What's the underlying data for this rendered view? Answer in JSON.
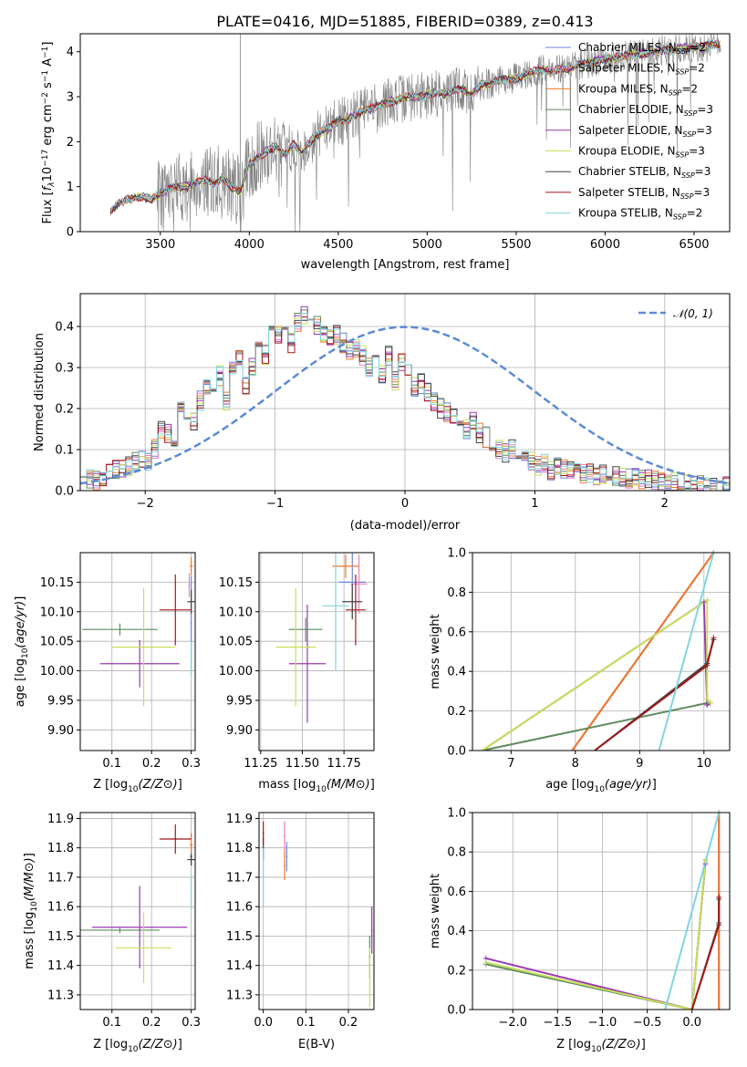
{
  "title": "PLATE=0416, MJD=51885, FIBERID=0389, z=0.413",
  "colors": {
    "data_spectrum": "#808080",
    "gaussian": "#5b8bd5",
    "grid": "#b0b0b0"
  },
  "models": [
    {
      "name": "Chabrier MILES",
      "nssp": "2",
      "color": "#6e84d8"
    },
    {
      "name": "Salpeter MILES",
      "nssp": "2",
      "color": "#e87fbf"
    },
    {
      "name": "Kroupa MILES",
      "nssp": "2",
      "color": "#ee7a2a"
    },
    {
      "name": "Chabrier ELODIE",
      "nssp": "3",
      "color": "#5e8c5e"
    },
    {
      "name": "Salpeter ELODIE",
      "nssp": "3",
      "color": "#9b37b4"
    },
    {
      "name": "Kroupa ELODIE",
      "nssp": "3",
      "color": "#c8e05a"
    },
    {
      "name": "Chabrier STELIB",
      "nssp": "3",
      "color": "#444444"
    },
    {
      "name": "Salpeter STELIB",
      "nssp": "3",
      "color": "#a01818"
    },
    {
      "name": "Kroupa STELIB",
      "nssp": "2",
      "color": "#7fd6e0"
    }
  ],
  "chart_data": [
    {
      "id": "spectrum",
      "type": "line",
      "title": "PLATE=0416, MJD=51885, FIBERID=0389, z=0.413",
      "xlabel": "wavelength [Angstrom, rest frame]",
      "ylabel": "Flux [f_λ 10^-17 erg cm^-2 s^-1 A^-1]",
      "xlim": [
        3050,
        6700
      ],
      "ylim": [
        0,
        4.4
      ],
      "xticks": [
        3500,
        4000,
        4500,
        5000,
        5500,
        6000,
        6500
      ],
      "yticks": [
        0,
        1,
        2,
        3,
        4
      ],
      "grid": false,
      "legend_position": "upper-right",
      "model_continuum": {
        "x": [
          3220,
          3260,
          3300,
          3350,
          3400,
          3450,
          3500,
          3550,
          3600,
          3650,
          3700,
          3750,
          3800,
          3850,
          3900,
          3950,
          4000,
          4050,
          4100,
          4150,
          4200,
          4250,
          4300,
          4350,
          4400,
          4450,
          4500,
          4550,
          4600,
          4650,
          4700,
          4750,
          4800,
          4850,
          4900,
          4950,
          5000,
          5050,
          5100,
          5150,
          5200,
          5250,
          5300,
          5350,
          5400,
          5450,
          5500,
          5550,
          5600,
          5650,
          5700,
          5750,
          5800,
          5850,
          5900,
          5950,
          6000,
          6050,
          6100,
          6150,
          6200,
          6250,
          6300,
          6350,
          6400,
          6450,
          6500,
          6550,
          6600,
          6650
        ],
        "y": [
          0.45,
          0.6,
          0.68,
          0.75,
          0.78,
          0.72,
          0.85,
          0.95,
          1.0,
          1.0,
          1.1,
          1.15,
          1.05,
          1.2,
          1.0,
          0.9,
          1.5,
          1.65,
          1.8,
          1.9,
          1.7,
          1.95,
          1.75,
          2.05,
          2.2,
          2.3,
          2.45,
          2.5,
          2.6,
          2.7,
          2.75,
          2.85,
          2.9,
          2.95,
          3.0,
          3.0,
          3.05,
          3.1,
          3.05,
          3.15,
          3.15,
          3.05,
          3.25,
          3.3,
          3.35,
          3.4,
          3.4,
          3.5,
          3.55,
          3.6,
          3.55,
          3.65,
          3.6,
          3.7,
          3.75,
          3.8,
          3.85,
          3.85,
          3.9,
          3.95,
          3.95,
          4.0,
          4.0,
          4.05,
          4.05,
          4.1,
          4.1,
          4.1,
          4.15,
          4.15
        ]
      }
    },
    {
      "id": "residuals",
      "type": "bar",
      "xlabel": "(data-model)/error",
      "ylabel": "Normed distribution",
      "xlim": [
        -2.5,
        2.5
      ],
      "ylim": [
        0,
        0.48
      ],
      "xticks": [
        -2,
        -1,
        0,
        1,
        2
      ],
      "yticks": [
        0.0,
        0.1,
        0.2,
        0.3,
        0.4
      ],
      "grid": true,
      "legend": "𝒩(0, 1)",
      "legend_position": "top-right",
      "bin_width": 0.1,
      "base_values": [
        0.04,
        0.03,
        0.025,
        0.03,
        0.04,
        0.05,
        0.055,
        0.06,
        0.07,
        0.08,
        0.07,
        0.1,
        0.15,
        0.14,
        0.12,
        0.2,
        0.17,
        0.17,
        0.22,
        0.25,
        0.23,
        0.28,
        0.22,
        0.3,
        0.32,
        0.26,
        0.3,
        0.35,
        0.33,
        0.4,
        0.38,
        0.39,
        0.36,
        0.41,
        0.43,
        0.42,
        0.4,
        0.38,
        0.37,
        0.38,
        0.36,
        0.34,
        0.35,
        0.33,
        0.3,
        0.31,
        0.28,
        0.33,
        0.27,
        0.31,
        0.29,
        0.25,
        0.26,
        0.24,
        0.22,
        0.2,
        0.19,
        0.18,
        0.16,
        0.15,
        0.17,
        0.14,
        0.13,
        0.12,
        0.1,
        0.09,
        0.1,
        0.08,
        0.085,
        0.07,
        0.06,
        0.065,
        0.05,
        0.06,
        0.055,
        0.05,
        0.045,
        0.04,
        0.04,
        0.035,
        0.04,
        0.04,
        0.035,
        0.03,
        0.03,
        0.03,
        0.025,
        0.03,
        0.025,
        0.02,
        0.02,
        0.02,
        0.02,
        0.015,
        0.015,
        0.015,
        0.01,
        0.01,
        0.01,
        0.01
      ],
      "gaussian_curve": {
        "mean": 0,
        "sigma": 1
      }
    },
    {
      "id": "age-vs-Z",
      "type": "scatter",
      "xlabel": "Z [log10(Z/Z⊙)]",
      "ylabel": "age  [log10(age/yr)]",
      "xlim": [
        0.02,
        0.31
      ],
      "ylim": [
        9.865,
        10.2
      ],
      "xticks": [
        0.1,
        0.2,
        0.3
      ],
      "yticks": [
        9.9,
        9.95,
        10.0,
        10.05,
        10.1,
        10.15
      ],
      "grid": true,
      "points": [
        {
          "x": 0.3,
          "y": 10.08,
          "xerr": 0.002,
          "yerr": 0.08
        },
        {
          "x": 0.295,
          "y": 10.145,
          "xerr": 0.002,
          "yerr": 0.02
        },
        {
          "x": 0.3,
          "y": 10.177,
          "xerr": 0.004,
          "yerr": 0.015
        },
        {
          "x": 0.12,
          "y": 10.07,
          "xerr": 0.095,
          "yerr": 0.01
        },
        {
          "x": 0.17,
          "y": 10.012,
          "xerr": 0.1,
          "yerr": 0.04
        },
        {
          "x": 0.18,
          "y": 10.04,
          "xerr": 0.08,
          "yerr": 0.1
        },
        {
          "x": 0.3,
          "y": 10.117,
          "xerr": 0.01,
          "yerr": 0.02
        },
        {
          "x": 0.26,
          "y": 10.103,
          "xerr": 0.04,
          "yerr": 0.06
        },
        {
          "x": 0.3,
          "y": 10.02,
          "xerr": 0.002,
          "yerr": 0.03
        }
      ]
    },
    {
      "id": "age-vs-mass",
      "type": "scatter",
      "xlabel": "mass [log10(M/M⊙)]",
      "ylabel": "",
      "xlim": [
        11.24,
        11.93
      ],
      "ylim": [
        9.865,
        10.2
      ],
      "xticks": [
        11.25,
        11.5,
        11.75
      ],
      "yticks": [
        9.9,
        9.95,
        10.0,
        10.05,
        10.1,
        10.15
      ],
      "grid": true,
      "points": [
        {
          "x": 11.8,
          "y": 10.15,
          "xerr": 0.08,
          "yerr": 0.06
        },
        {
          "x": 11.84,
          "y": 10.147,
          "xerr": 0.05,
          "yerr": 0.05
        },
        {
          "x": 11.76,
          "y": 10.177,
          "xerr": 0.08,
          "yerr": 0.02
        },
        {
          "x": 11.52,
          "y": 10.07,
          "xerr": 0.1,
          "yerr": 0.02
        },
        {
          "x": 11.53,
          "y": 10.012,
          "xerr": 0.11,
          "yerr": 0.1
        },
        {
          "x": 11.46,
          "y": 10.04,
          "xerr": 0.12,
          "yerr": 0.1
        },
        {
          "x": 11.8,
          "y": 10.117,
          "xerr": 0.06,
          "yerr": 0.03
        },
        {
          "x": 11.82,
          "y": 10.103,
          "xerr": 0.06,
          "yerr": 0.06
        },
        {
          "x": 11.7,
          "y": 10.11,
          "xerr": 0.08,
          "yerr": 0.11
        }
      ]
    },
    {
      "id": "massweight-vs-age",
      "type": "line",
      "xlabel": "age  [log10(age/yr)]",
      "ylabel": "mass weight",
      "xlim": [
        6.4,
        10.4
      ],
      "ylim": [
        0,
        1.0
      ],
      "xticks": [
        7,
        8,
        9,
        10
      ],
      "yticks": [
        0.0,
        0.2,
        0.4,
        0.6,
        0.8,
        1.0
      ],
      "grid": true,
      "series": [
        {
          "x": [
            7.95,
            10.15
          ],
          "y": [
            0.0,
            1.0
          ]
        },
        {
          "x": [
            7.95,
            10.15
          ],
          "y": [
            0.0,
            1.0
          ]
        },
        {
          "x": [
            7.95,
            10.15
          ],
          "y": [
            0.0,
            1.0
          ]
        },
        {
          "x": [
            6.55,
            10.05,
            10.05
          ],
          "y": [
            0.0,
            0.24,
            0.24
          ]
        },
        {
          "x": [
            6.55,
            10.0,
            10.05,
            10.1
          ],
          "y": [
            0.0,
            0.75,
            0.23,
            0.24
          ]
        },
        {
          "x": [
            6.55,
            10.05,
            10.05,
            10.1
          ],
          "y": [
            0.0,
            0.76,
            0.26,
            0.24
          ]
        },
        {
          "x": [
            8.3,
            10.05,
            10.15
          ],
          "y": [
            0.0,
            0.44,
            0.56
          ]
        },
        {
          "x": [
            8.3,
            10.05,
            10.15
          ],
          "y": [
            0.0,
            0.43,
            0.57
          ]
        },
        {
          "x": [
            9.3,
            10.15
          ],
          "y": [
            0.0,
            1.0
          ]
        }
      ]
    },
    {
      "id": "mass-vs-Z",
      "type": "scatter",
      "xlabel": "Z [log10(Z/Z⊙)]",
      "ylabel": "mass [log10(M/M⊙)]",
      "xlim": [
        0.02,
        0.31
      ],
      "ylim": [
        11.25,
        11.92
      ],
      "xticks": [
        0.1,
        0.2,
        0.3
      ],
      "yticks": [
        11.3,
        11.4,
        11.5,
        11.6,
        11.7,
        11.8,
        11.9
      ],
      "grid": true,
      "points": [
        {
          "x": 0.3,
          "y": 11.77,
          "xerr": 0.003,
          "yerr": 0.03
        },
        {
          "x": 0.3,
          "y": 11.84,
          "xerr": 0.002,
          "yerr": 0.01
        },
        {
          "x": 0.3,
          "y": 11.81,
          "xerr": 0.004,
          "yerr": 0.04
        },
        {
          "x": 0.12,
          "y": 11.52,
          "xerr": 0.1,
          "yerr": 0.01
        },
        {
          "x": 0.17,
          "y": 11.53,
          "xerr": 0.12,
          "yerr": 0.14
        },
        {
          "x": 0.18,
          "y": 11.46,
          "xerr": 0.07,
          "yerr": 0.12
        },
        {
          "x": 0.3,
          "y": 11.76,
          "xerr": 0.01,
          "yerr": 0.02
        },
        {
          "x": 0.26,
          "y": 11.83,
          "xerr": 0.04,
          "yerr": 0.05
        },
        {
          "x": 0.3,
          "y": 11.65,
          "xerr": 0.002,
          "yerr": 0.06
        }
      ]
    },
    {
      "id": "mass-vs-EBV",
      "type": "scatter",
      "xlabel": "E(B-V)",
      "ylabel": "",
      "xlim": [
        -0.01,
        0.26
      ],
      "ylim": [
        11.25,
        11.92
      ],
      "xticks": [
        0.0,
        0.1,
        0.2
      ],
      "yticks": [
        11.3,
        11.4,
        11.5,
        11.6,
        11.7,
        11.8,
        11.9
      ],
      "grid": true,
      "points": [
        {
          "x": 0.055,
          "y": 11.77,
          "xerr": 0.002,
          "yerr": 0.05
        },
        {
          "x": 0.05,
          "y": 11.84,
          "xerr": 0.002,
          "yerr": 0.05
        },
        {
          "x": 0.05,
          "y": 11.74,
          "xerr": 0.002,
          "yerr": 0.05
        },
        {
          "x": 0.25,
          "y": 11.43,
          "xerr": 0.002,
          "yerr": 0.07
        },
        {
          "x": 0.255,
          "y": 11.52,
          "xerr": 0.002,
          "yerr": 0.08
        },
        {
          "x": 0.25,
          "y": 11.36,
          "xerr": 0.002,
          "yerr": 0.1
        },
        {
          "x": 0.0,
          "y": 11.8,
          "xerr": 0.002,
          "yerr": 0.04
        },
        {
          "x": 0.0,
          "y": 11.85,
          "xerr": 0.002,
          "yerr": 0.04
        },
        {
          "x": 0.0,
          "y": 11.7,
          "xerr": 0.002,
          "yerr": 0.1
        }
      ]
    },
    {
      "id": "massweight-vs-Z",
      "type": "line",
      "xlabel": "Z [log10(Z/Z⊙)]",
      "ylabel": "mass weight",
      "xlim": [
        -2.45,
        0.42
      ],
      "ylim": [
        0,
        1.0
      ],
      "xticks": [
        -2.0,
        -1.5,
        -1.0,
        -0.5,
        0.0
      ],
      "yticks": [
        0.0,
        0.2,
        0.4,
        0.6,
        0.8,
        1.0
      ],
      "grid": true,
      "series": [
        {
          "x": [
            0.3,
            0.3
          ],
          "y": [
            0.0,
            1.0
          ]
        },
        {
          "x": [
            0.3,
            0.3
          ],
          "y": [
            0.0,
            1.0
          ]
        },
        {
          "x": [
            0.3,
            0.3
          ],
          "y": [
            0.0,
            1.0
          ]
        },
        {
          "x": [
            -2.3,
            0.0,
            0.15,
            0.15
          ],
          "y": [
            0.23,
            0.0,
            0.76,
            0.75
          ]
        },
        {
          "x": [
            -2.3,
            0.0,
            0.15,
            0.15
          ],
          "y": [
            0.26,
            0.0,
            0.75,
            0.74
          ]
        },
        {
          "x": [
            -2.3,
            0.0,
            0.15,
            0.15
          ],
          "y": [
            0.24,
            0.0,
            0.76,
            0.75
          ]
        },
        {
          "x": [
            0.0,
            0.3,
            0.3
          ],
          "y": [
            0.0,
            0.44,
            0.56
          ]
        },
        {
          "x": [
            0.0,
            0.3,
            0.3
          ],
          "y": [
            0.0,
            0.43,
            0.57
          ]
        },
        {
          "x": [
            -0.3,
            0.3
          ],
          "y": [
            0.0,
            1.0
          ]
        }
      ]
    }
  ]
}
